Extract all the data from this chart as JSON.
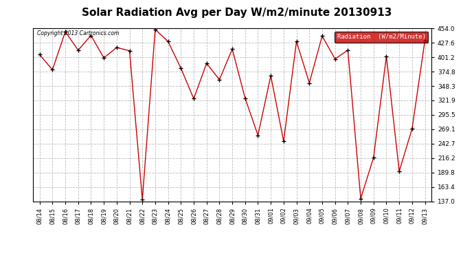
{
  "title": "Solar Radiation Avg per Day W/m2/minute 20130913",
  "copyright_text": "Copyright 2013 Cartronics.com",
  "legend_label": "Radiation  (W/m2/Minute)",
  "dates": [
    "08/14",
    "08/15",
    "08/16",
    "08/17",
    "08/18",
    "08/19",
    "08/20",
    "08/21",
    "08/22",
    "08/23",
    "08/24",
    "08/25",
    "08/26",
    "08/27",
    "08/28",
    "08/29",
    "08/30",
    "08/31",
    "09/01",
    "09/02",
    "09/03",
    "09/04",
    "09/05",
    "09/06",
    "09/07",
    "09/08",
    "09/09",
    "09/10",
    "09/11",
    "09/12",
    "09/13"
  ],
  "values": [
    406,
    378,
    448,
    414,
    441,
    400,
    419,
    413,
    140,
    452,
    430,
    381,
    325,
    390,
    360,
    416,
    326,
    258,
    367,
    247,
    430,
    354,
    440,
    398,
    414,
    142,
    217,
    403,
    192,
    270,
    432
  ],
  "y_min": 137.0,
  "y_max": 454.0,
  "y_ticks": [
    137.0,
    163.4,
    189.8,
    216.2,
    242.7,
    269.1,
    295.5,
    321.9,
    348.3,
    374.8,
    401.2,
    427.6,
    454.0
  ],
  "line_color": "#cc0000",
  "marker_color": "#000000",
  "background_color": "#ffffff",
  "grid_color": "#bbbbbb",
  "title_fontsize": 11,
  "legend_bg_color": "#cc0000",
  "legend_text_color": "#ffffff"
}
